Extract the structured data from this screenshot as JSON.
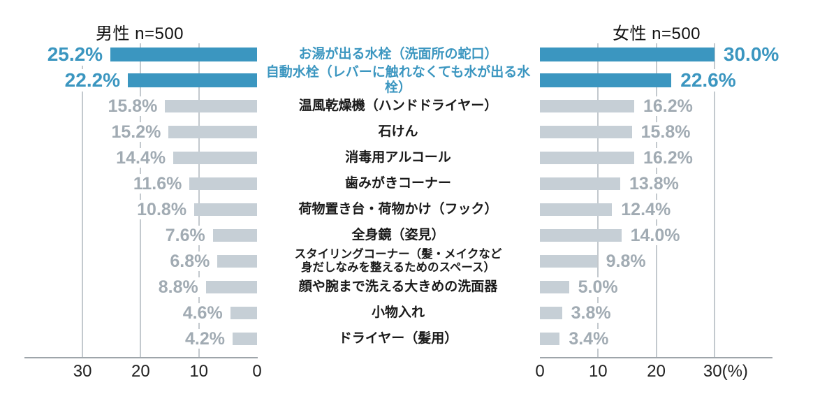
{
  "chart_data": {
    "type": "bar",
    "orientation": "horizontal-butterfly",
    "title_left": "男性 n=500",
    "title_right": "女性 n=500",
    "unit_suffix": "(%)",
    "axis_ticks": [
      0,
      10,
      20,
      30
    ],
    "xlim": [
      0,
      40
    ],
    "grid": true,
    "categories": [
      "お湯が出る水栓（洗面所の蛇口）",
      "自動水栓（レバーに触れなくても水が出る水栓）",
      "温風乾燥機（ハンドドライヤー）",
      "石けん",
      "消毒用アルコール",
      "歯みがきコーナー",
      "荷物置き台・荷物かけ（フック）",
      "全身鏡（姿見）",
      "スタイリングコーナー（髪・メイクなど\n身だしなみを整えるためのスペース）",
      "顔や腕まで洗える大きめの洗面器",
      "小物入れ",
      "ドライヤー（髪用）"
    ],
    "series": [
      {
        "name": "男性",
        "values": [
          25.2,
          22.2,
          15.8,
          15.2,
          14.4,
          11.6,
          10.8,
          7.6,
          6.8,
          8.8,
          4.6,
          4.2
        ]
      },
      {
        "name": "女性",
        "values": [
          30.0,
          22.6,
          16.2,
          15.8,
          16.2,
          13.8,
          12.4,
          14.0,
          9.8,
          5.0,
          3.8,
          3.4
        ]
      }
    ],
    "highlighted_rows": [
      0,
      1
    ],
    "colors": {
      "highlight": "#3B96C0",
      "bar_gray": "#C6CFD6",
      "value_gray": "#A1ABB3",
      "category_black": "#1A1A1A",
      "grid": "#C3C9CE",
      "axis": "#9EA5AA"
    }
  }
}
